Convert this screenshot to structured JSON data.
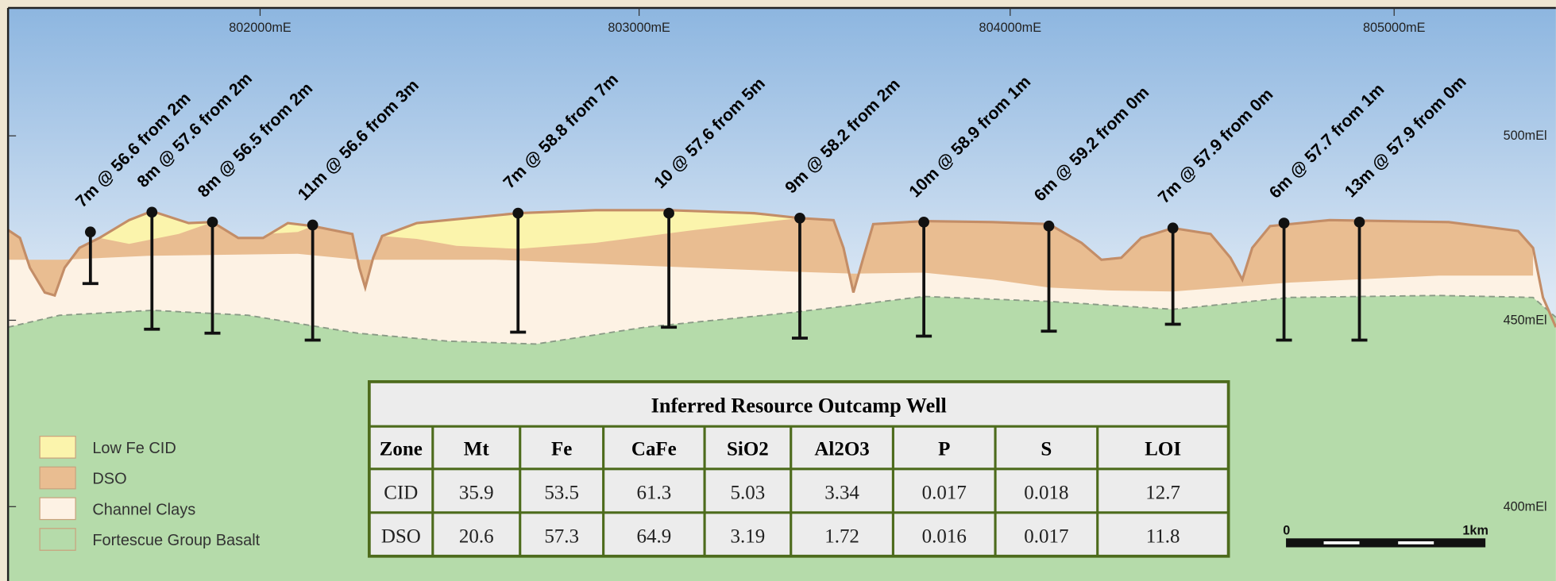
{
  "section": {
    "eastings": [
      "802000mE",
      "803000mE",
      "804000mE",
      "805000mE"
    ],
    "elevations": [
      "500mEl",
      "450mEl",
      "400mEl"
    ],
    "drill_holes": [
      "7m @ 56.6  from 2m",
      "8m @ 57.6 from 2m",
      "8m @ 56.5 from 2m",
      "11m @ 56.6 from 3m",
      "7m @ 58.8 from 7m",
      "10 @ 57.6 from 5m",
      "9m @ 58.2 from 2m",
      "10m @ 58.9 from 1m",
      "6m @ 59.2 from 0m",
      "7m @ 57.9 from 0m",
      "6m @ 57.7 from 1m",
      "13m @ 57.9 from 0m"
    ]
  },
  "legend": [
    "Low Fe CID",
    "DSO",
    "Channel Clays",
    "Fortescue Group Basalt"
  ],
  "table": {
    "title": "Inferred Resource Outcamp Well",
    "header": [
      "Zone",
      "Mt",
      "Fe",
      "CaFe",
      "SiO2",
      "Al2O3",
      "P",
      "S",
      "LOI"
    ],
    "rows": [
      [
        "CID",
        "35.9",
        "53.5",
        "61.3",
        "5.03",
        "3.34",
        "0.017",
        "0.018",
        "12.7"
      ],
      [
        "DSO",
        "20.6",
        "57.3",
        "64.9",
        "3.19",
        "1.72",
        "0.016",
        "0.017",
        "11.8"
      ]
    ]
  },
  "scale_bar": {
    "start": "0",
    "end": "1km"
  }
}
